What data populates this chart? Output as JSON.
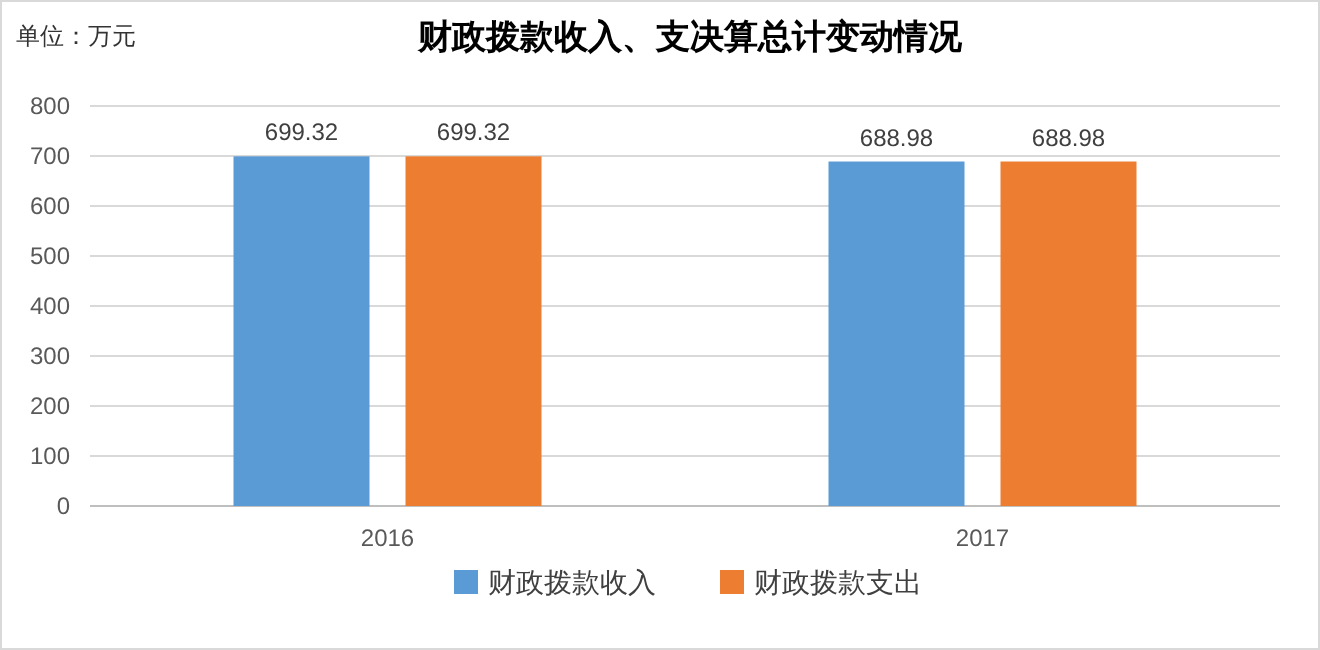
{
  "chart_data": {
    "type": "bar",
    "title": "财政拨款收入、支决算总计变动情况",
    "annotations": [
      "单位：万元"
    ],
    "categories": [
      "2016",
      "2017"
    ],
    "series": [
      {
        "name": "财政拨款收入",
        "color": "#5b9bd5",
        "values": [
          699.32,
          688.98
        ]
      },
      {
        "name": "财政拨款支出",
        "color": "#ed7d31",
        "values": [
          699.32,
          688.98
        ]
      }
    ],
    "ylim": [
      0,
      800
    ],
    "yticks": [
      0,
      100,
      200,
      300,
      400,
      500,
      600,
      700,
      800
    ],
    "grid": "y",
    "legend": "bottom",
    "data_labels": true
  }
}
